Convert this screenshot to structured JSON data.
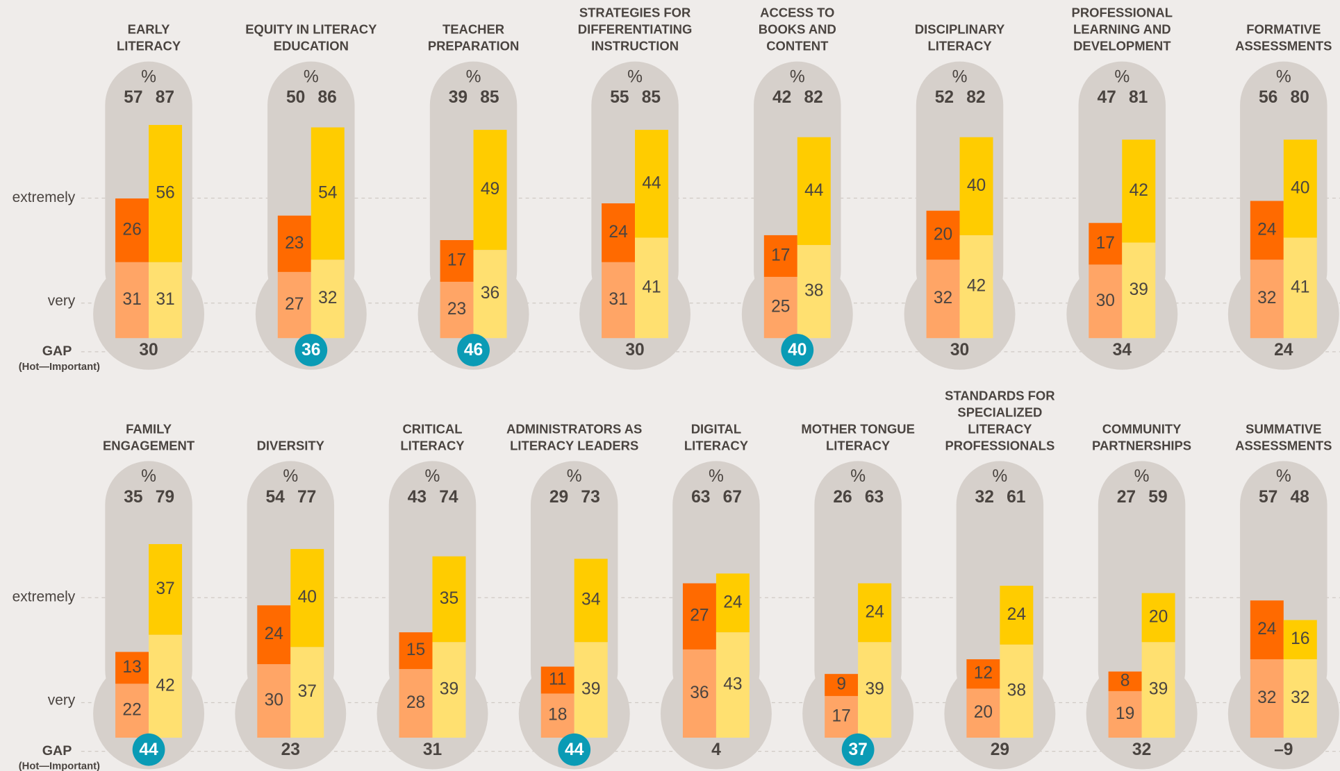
{
  "chart_data": {
    "type": "thermometer",
    "unit": "%",
    "labels": {
      "extremely": "extremely",
      "very": "very",
      "gap": "GAP",
      "gap_sub": "(Hot—Important)"
    },
    "colors": {
      "hot_very": "#ffa566",
      "hot_extremely": "#ff6a00",
      "important_very": "#ffe070",
      "important_extremely": "#ffcc00",
      "highlight": "#0a9bb5"
    },
    "rows": [
      [
        {
          "title": [
            "EARLY",
            "LITERACY"
          ],
          "hot_total": 57,
          "important_total": 87,
          "hot": {
            "very": 31,
            "extremely": 26
          },
          "important": {
            "very": 31,
            "extremely": 56
          },
          "gap": 30,
          "highlight": false
        },
        {
          "title": [
            "EQUITY IN LITERACY",
            "EDUCATION"
          ],
          "hot_total": 50,
          "important_total": 86,
          "hot": {
            "very": 27,
            "extremely": 23
          },
          "important": {
            "very": 32,
            "extremely": 54
          },
          "gap": 36,
          "highlight": true
        },
        {
          "title": [
            "TEACHER",
            "PREPARATION"
          ],
          "hot_total": 39,
          "important_total": 85,
          "hot": {
            "very": 23,
            "extremely": 17
          },
          "important": {
            "very": 36,
            "extremely": 49
          },
          "gap": 46,
          "highlight": true
        },
        {
          "title": [
            "STRATEGIES FOR",
            "DIFFERENTIATING",
            "INSTRUCTION"
          ],
          "hot_total": 55,
          "important_total": 85,
          "hot": {
            "very": 31,
            "extremely": 24
          },
          "important": {
            "very": 41,
            "extremely": 44
          },
          "gap": 30,
          "highlight": false
        },
        {
          "title": [
            "ACCESS TO",
            "BOOKS AND",
            "CONTENT"
          ],
          "hot_total": 42,
          "important_total": 82,
          "hot": {
            "very": 25,
            "extremely": 17
          },
          "important": {
            "very": 38,
            "extremely": 44
          },
          "gap": 40,
          "highlight": true
        },
        {
          "title": [
            "DISCIPLINARY",
            "LITERACY"
          ],
          "hot_total": 52,
          "important_total": 82,
          "hot": {
            "very": 32,
            "extremely": 20
          },
          "important": {
            "very": 42,
            "extremely": 40
          },
          "gap": 30,
          "highlight": false
        },
        {
          "title": [
            "PROFESSIONAL",
            "LEARNING AND",
            "DEVELOPMENT"
          ],
          "hot_total": 47,
          "important_total": 81,
          "hot": {
            "very": 30,
            "extremely": 17
          },
          "important": {
            "very": 39,
            "extremely": 42
          },
          "gap": 34,
          "highlight": false
        },
        {
          "title": [
            "FORMATIVE",
            "ASSESSMENTS"
          ],
          "hot_total": 56,
          "important_total": 80,
          "hot": {
            "very": 32,
            "extremely": 24
          },
          "important": {
            "very": 41,
            "extremely": 40
          },
          "gap": 24,
          "highlight": false
        }
      ],
      [
        {
          "title": [
            "FAMILY",
            "ENGAGEMENT"
          ],
          "hot_total": 35,
          "important_total": 79,
          "hot": {
            "very": 22,
            "extremely": 13
          },
          "important": {
            "very": 42,
            "extremely": 37
          },
          "gap": 44,
          "highlight": true
        },
        {
          "title": [
            "DIVERSITY"
          ],
          "hot_total": 54,
          "important_total": 77,
          "hot": {
            "very": 30,
            "extremely": 24
          },
          "important": {
            "very": 37,
            "extremely": 40
          },
          "gap": 23,
          "highlight": false
        },
        {
          "title": [
            "CRITICAL",
            "LITERACY"
          ],
          "hot_total": 43,
          "important_total": 74,
          "hot": {
            "very": 28,
            "extremely": 15
          },
          "important": {
            "very": 39,
            "extremely": 35
          },
          "gap": 31,
          "highlight": false
        },
        {
          "title": [
            "ADMINISTRATORS AS",
            "LITERACY LEADERS"
          ],
          "hot_total": 29,
          "important_total": 73,
          "hot": {
            "very": 18,
            "extremely": 11
          },
          "important": {
            "very": 39,
            "extremely": 34
          },
          "gap": 44,
          "highlight": true
        },
        {
          "title": [
            "DIGITAL",
            "LITERACY"
          ],
          "hot_total": 63,
          "important_total": 67,
          "hot": {
            "very": 36,
            "extremely": 27
          },
          "important": {
            "very": 43,
            "extremely": 24
          },
          "gap": 4,
          "highlight": false
        },
        {
          "title": [
            "MOTHER TONGUE",
            "LITERACY"
          ],
          "hot_total": 26,
          "important_total": 63,
          "hot": {
            "very": 17,
            "extremely": 9
          },
          "important": {
            "very": 39,
            "extremely": 24
          },
          "gap": 37,
          "highlight": true
        },
        {
          "title": [
            "STANDARDS FOR",
            "SPECIALIZED",
            "LITERACY",
            "PROFESSIONALS"
          ],
          "hot_total": 32,
          "important_total": 61,
          "hot": {
            "very": 20,
            "extremely": 12
          },
          "important": {
            "very": 38,
            "extremely": 24
          },
          "gap": 29,
          "highlight": false
        },
        {
          "title": [
            "COMMUNITY",
            "PARTNERSHIPS"
          ],
          "hot_total": 27,
          "important_total": 59,
          "hot": {
            "very": 19,
            "extremely": 8
          },
          "important": {
            "very": 39,
            "extremely": 20
          },
          "gap": 32,
          "highlight": false
        },
        {
          "title": [
            "SUMMATIVE",
            "ASSESSMENTS"
          ],
          "hot_total": 57,
          "important_total": 48,
          "hot": {
            "very": 32,
            "extremely": 24
          },
          "important": {
            "very": 32,
            "extremely": 16
          },
          "gap": -9,
          "gap_label": "–9",
          "highlight": false
        }
      ]
    ]
  }
}
